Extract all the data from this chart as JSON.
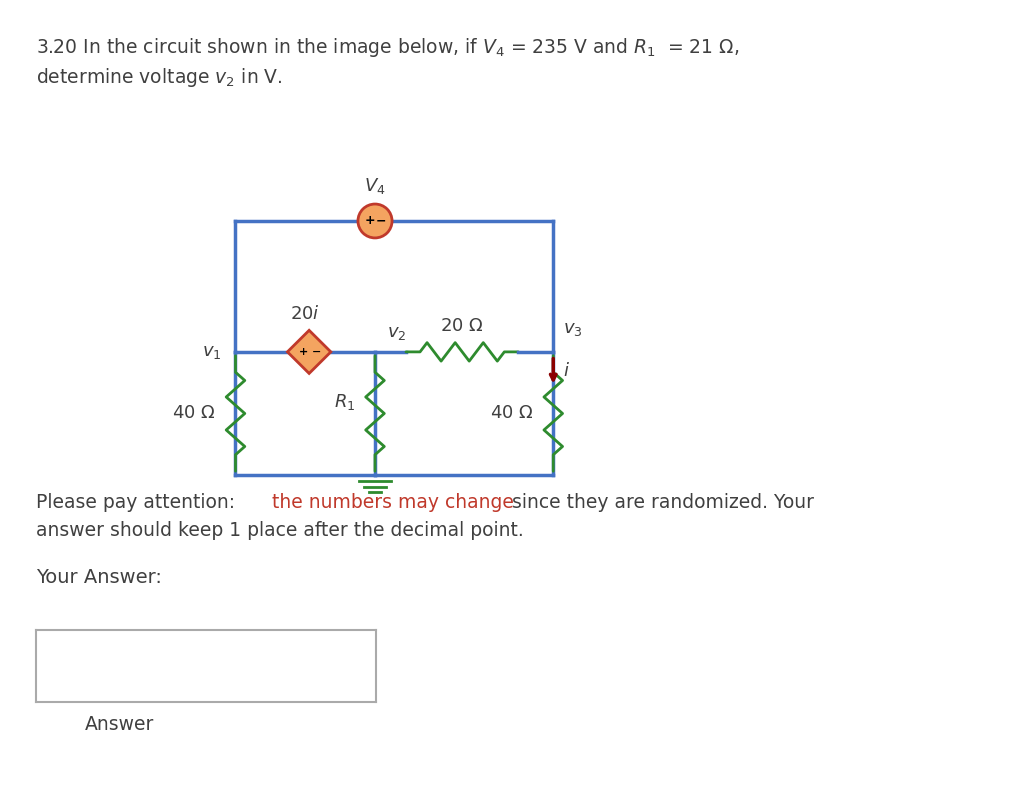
{
  "bg_color": "#ffffff",
  "circuit_color": "#4472c4",
  "resistor_color": "#2e8b2e",
  "diamond_fill": "#f4a460",
  "diamond_stroke": "#c0392b",
  "circle_fill": "#f4a460",
  "circle_stroke": "#c0392b",
  "arrow_color": "#8b0000",
  "text_color": "#404040",
  "red_text_color": "#c0392b",
  "title_part1": "3.20 In the circuit shown in the image below, if ",
  "title_v4": "V",
  "title_part2": " = 235 V and ",
  "title_r1": "R",
  "title_part3": "  = 21 Ω,",
  "title_line2": "determine voltage ",
  "title_v2": "v",
  "title_line2_end": " in V.",
  "please_text": "Please pay attention: ",
  "red_part": "the numbers may change",
  "after_red": " since they are randomized. Your",
  "line2_text": "answer should keep 1 place after the decimal point.",
  "your_answer": "Your Answer:",
  "answer_label": "Answer",
  "V4_val": "235",
  "R1_val": "21"
}
